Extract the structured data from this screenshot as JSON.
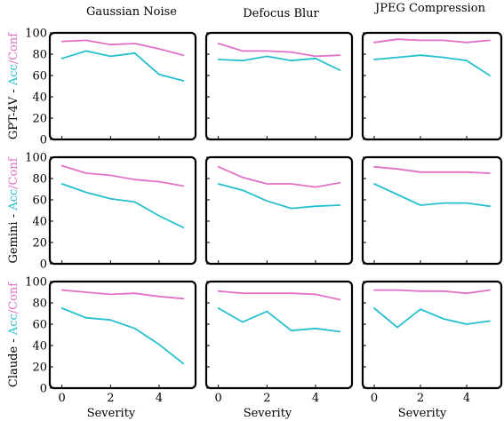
{
  "colors": {
    "accuracy": "#26bfcf",
    "confidence": "#e070c8",
    "axes": "#000000"
  },
  "column_titles": [
    "Gaussian Noise",
    "Defocus Blur",
    "JPEG Compression"
  ],
  "row_labels": [
    {
      "model": "GPT-4V",
      "sep": " - ",
      "acc": "Acc",
      "slash": "/",
      "conf": "Conf"
    },
    {
      "model": "Gemini",
      "sep": " - ",
      "acc": "Acc",
      "slash": "/",
      "conf": "Conf"
    },
    {
      "model": "Claude",
      "sep": " - ",
      "acc": "Acc",
      "slash": "/",
      "conf": "Conf"
    }
  ],
  "x_axis_label": "Severity",
  "chart_data": [
    {
      "type": "line",
      "model": "GPT-4V",
      "corruption": "Gaussian Noise",
      "x": [
        0,
        1,
        2,
        3,
        4,
        5
      ],
      "xlim": [
        -0.5,
        5.5
      ],
      "ylim": [
        0,
        100
      ],
      "xticks": [
        0,
        2,
        4
      ],
      "yticks": [
        0,
        20,
        40,
        60,
        80,
        100
      ],
      "series": [
        {
          "name": "Acc",
          "values": [
            76,
            83,
            78,
            81,
            61,
            55
          ]
        },
        {
          "name": "Conf",
          "values": [
            92,
            93,
            89,
            90,
            85,
            79
          ]
        }
      ]
    },
    {
      "type": "line",
      "model": "GPT-4V",
      "corruption": "Defocus Blur",
      "x": [
        0,
        1,
        2,
        3,
        4,
        5
      ],
      "xlim": [
        -0.5,
        5.5
      ],
      "ylim": [
        0,
        100
      ],
      "xticks": [
        0,
        2,
        4
      ],
      "yticks": [
        0,
        20,
        40,
        60,
        80,
        100
      ],
      "series": [
        {
          "name": "Acc",
          "values": [
            75,
            74,
            78,
            74,
            76,
            65
          ]
        },
        {
          "name": "Conf",
          "values": [
            90,
            83,
            83,
            82,
            78,
            79
          ]
        }
      ]
    },
    {
      "type": "line",
      "model": "GPT-4V",
      "corruption": "JPEG Compression",
      "x": [
        0,
        1,
        2,
        3,
        4,
        5
      ],
      "xlim": [
        -0.5,
        5.5
      ],
      "ylim": [
        0,
        100
      ],
      "xticks": [
        0,
        2,
        4
      ],
      "yticks": [
        0,
        20,
        40,
        60,
        80,
        100
      ],
      "series": [
        {
          "name": "Acc",
          "values": [
            75,
            77,
            79,
            77,
            74,
            60
          ]
        },
        {
          "name": "Conf",
          "values": [
            91,
            94,
            93,
            93,
            91,
            93
          ]
        }
      ]
    },
    {
      "type": "line",
      "model": "Gemini",
      "corruption": "Gaussian Noise",
      "x": [
        0,
        1,
        2,
        3,
        4,
        5
      ],
      "xlim": [
        -0.5,
        5.5
      ],
      "ylim": [
        0,
        100
      ],
      "xticks": [
        0,
        2,
        4
      ],
      "yticks": [
        0,
        20,
        40,
        60,
        80,
        100
      ],
      "series": [
        {
          "name": "Acc",
          "values": [
            75,
            67,
            61,
            58,
            45,
            34
          ]
        },
        {
          "name": "Conf",
          "values": [
            92,
            85,
            83,
            79,
            77,
            73
          ]
        }
      ]
    },
    {
      "type": "line",
      "model": "Gemini",
      "corruption": "Defocus Blur",
      "x": [
        0,
        1,
        2,
        3,
        4,
        5
      ],
      "xlim": [
        -0.5,
        5.5
      ],
      "ylim": [
        0,
        100
      ],
      "xticks": [
        0,
        2,
        4
      ],
      "yticks": [
        0,
        20,
        40,
        60,
        80,
        100
      ],
      "series": [
        {
          "name": "Acc",
          "values": [
            75,
            69,
            59,
            52,
            54,
            55
          ]
        },
        {
          "name": "Conf",
          "values": [
            91,
            81,
            75,
            75,
            72,
            76
          ]
        }
      ]
    },
    {
      "type": "line",
      "model": "Gemini",
      "corruption": "JPEG Compression",
      "x": [
        0,
        1,
        2,
        3,
        4,
        5
      ],
      "xlim": [
        -0.5,
        5.5
      ],
      "ylim": [
        0,
        100
      ],
      "xticks": [
        0,
        2,
        4
      ],
      "yticks": [
        0,
        20,
        40,
        60,
        80,
        100
      ],
      "series": [
        {
          "name": "Acc",
          "values": [
            75,
            65,
            55,
            57,
            57,
            54
          ]
        },
        {
          "name": "Conf",
          "values": [
            91,
            89,
            86,
            86,
            86,
            85
          ]
        }
      ]
    },
    {
      "type": "line",
      "model": "Claude",
      "corruption": "Gaussian Noise",
      "x": [
        0,
        1,
        2,
        3,
        4,
        5
      ],
      "xlim": [
        -0.5,
        5.5
      ],
      "ylim": [
        0,
        100
      ],
      "xticks": [
        0,
        2,
        4
      ],
      "yticks": [
        0,
        20,
        40,
        60,
        80,
        100
      ],
      "series": [
        {
          "name": "Acc",
          "values": [
            75,
            66,
            64,
            56,
            41,
            23
          ]
        },
        {
          "name": "Conf",
          "values": [
            92,
            90,
            88,
            89,
            86,
            84
          ]
        }
      ]
    },
    {
      "type": "line",
      "model": "Claude",
      "corruption": "Defocus Blur",
      "x": [
        0,
        1,
        2,
        3,
        4,
        5
      ],
      "xlim": [
        -0.5,
        5.5
      ],
      "ylim": [
        0,
        100
      ],
      "xticks": [
        0,
        2,
        4
      ],
      "yticks": [
        0,
        20,
        40,
        60,
        80,
        100
      ],
      "series": [
        {
          "name": "Acc",
          "values": [
            75,
            62,
            72,
            54,
            56,
            53
          ]
        },
        {
          "name": "Conf",
          "values": [
            91,
            89,
            89,
            89,
            88,
            83
          ]
        }
      ]
    },
    {
      "type": "line",
      "model": "Claude",
      "corruption": "JPEG Compression",
      "x": [
        0,
        1,
        2,
        3,
        4,
        5
      ],
      "xlim": [
        -0.5,
        5.5
      ],
      "ylim": [
        0,
        100
      ],
      "xticks": [
        0,
        2,
        4
      ],
      "yticks": [
        0,
        20,
        40,
        60,
        80,
        100
      ],
      "series": [
        {
          "name": "Acc",
          "values": [
            75,
            57,
            74,
            65,
            60,
            63
          ]
        },
        {
          "name": "Conf",
          "values": [
            92,
            92,
            91,
            91,
            89,
            92
          ]
        }
      ]
    }
  ]
}
